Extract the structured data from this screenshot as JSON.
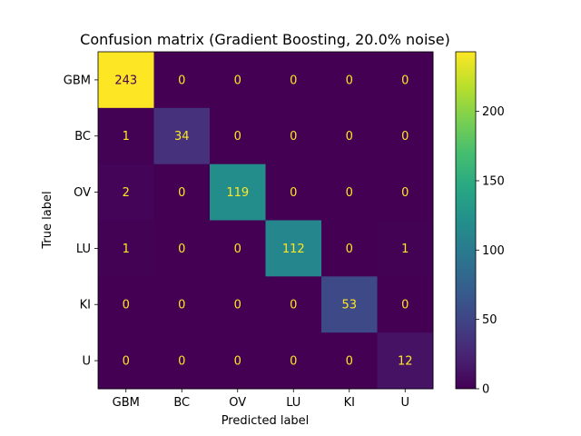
{
  "chart_data": {
    "type": "heatmap",
    "title": "Confusion matrix (Gradient Boosting, 20.0% noise)",
    "xlabel": "Predicted label",
    "ylabel": "True label",
    "x_categories": [
      "GBM",
      "BC",
      "OV",
      "LU",
      "KI",
      "U"
    ],
    "y_categories": [
      "GBM",
      "BC",
      "OV",
      "LU",
      "KI",
      "U"
    ],
    "matrix": [
      [
        243,
        0,
        0,
        0,
        0,
        0
      ],
      [
        1,
        34,
        0,
        0,
        0,
        0
      ],
      [
        2,
        0,
        119,
        0,
        0,
        0
      ],
      [
        1,
        0,
        0,
        112,
        0,
        1
      ],
      [
        0,
        0,
        0,
        0,
        53,
        0
      ],
      [
        0,
        0,
        0,
        0,
        0,
        12
      ]
    ],
    "colormap": "viridis",
    "value_range": [
      0,
      243
    ],
    "colorbar_ticks": [
      0,
      50,
      100,
      150,
      200
    ],
    "text_color_low": "#fde725",
    "text_color_high": "#440154",
    "grid": false
  }
}
